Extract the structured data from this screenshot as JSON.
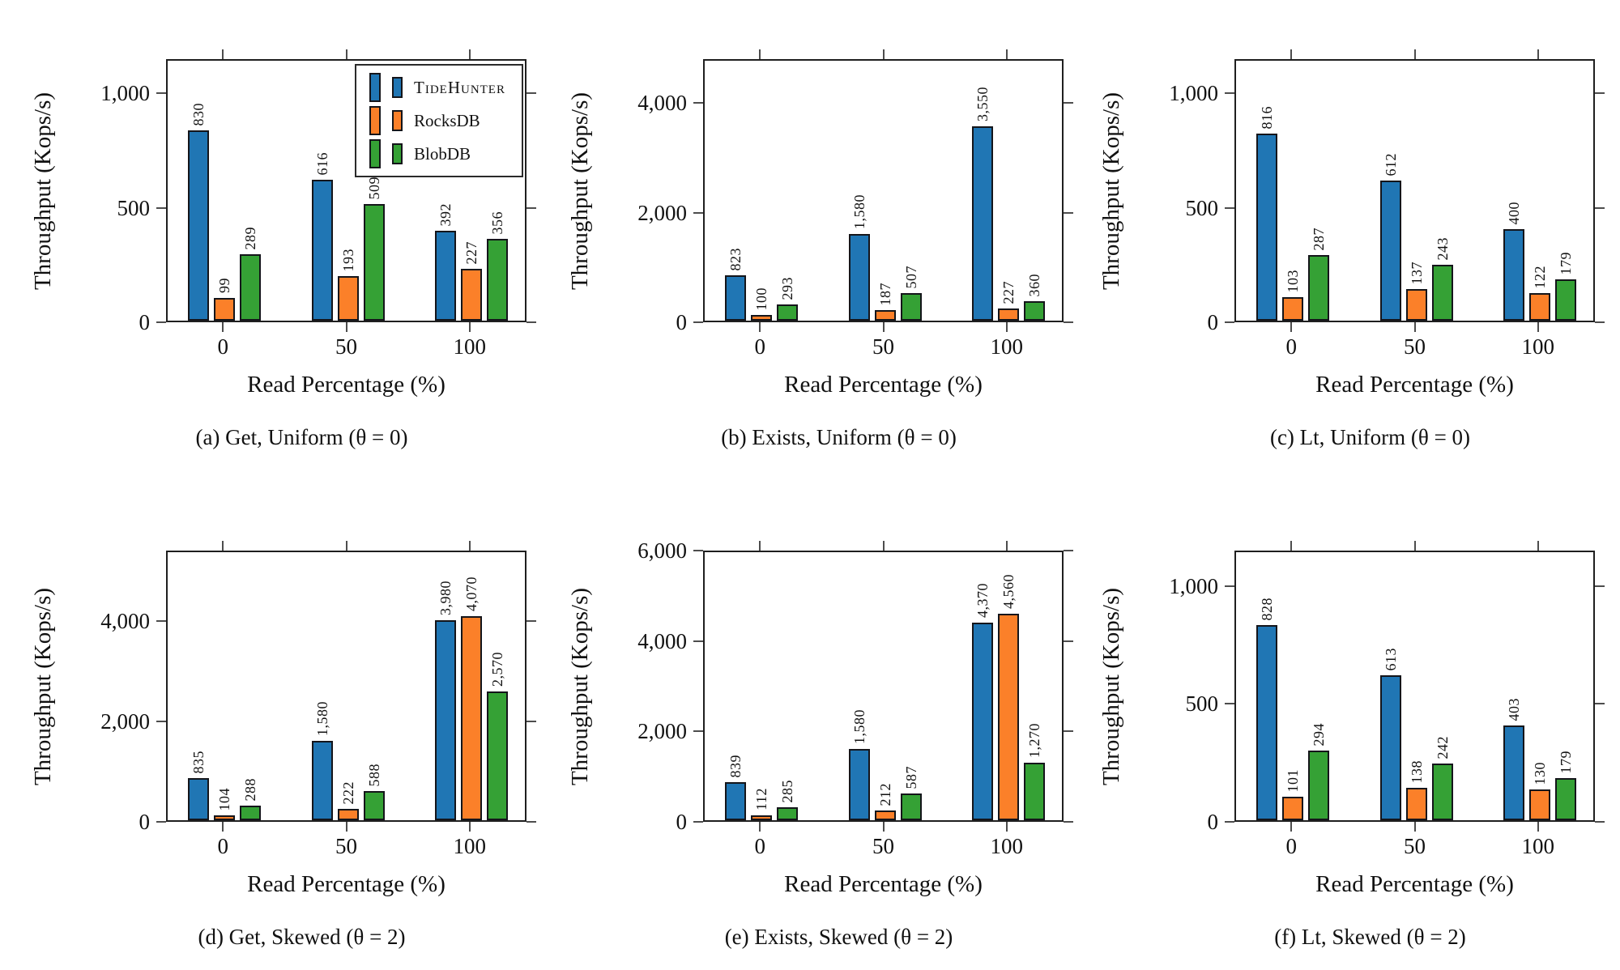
{
  "figure": {
    "background": "#ffffff",
    "series": [
      {
        "name": "TideHunter",
        "color": "#2076B4",
        "smallcaps": true
      },
      {
        "name": "RocksDB",
        "color": "#FB8029",
        "smallcaps": false
      },
      {
        "name": "BlobDB",
        "color": "#35A135",
        "smallcaps": false
      }
    ],
    "legend": {
      "chart": "a",
      "entries": [
        "TideHunter",
        "RocksDB",
        "BlobDB"
      ]
    }
  },
  "chart_data": [
    {
      "id": "a",
      "type": "bar",
      "caption": "(a) Get, Uniform (θ = 0)",
      "xlabel": "Read Percentage (%)",
      "ylabel": "Throughput (Kops/s)",
      "categories": [
        "0",
        "50",
        "100"
      ],
      "series": [
        {
          "name": "TideHunter",
          "values": [
            830,
            616,
            392
          ]
        },
        {
          "name": "RocksDB",
          "values": [
            99,
            193,
            227
          ]
        },
        {
          "name": "BlobDB",
          "values": [
            289,
            509,
            356
          ]
        }
      ],
      "yticks": [
        0,
        500,
        1000
      ],
      "ylim": [
        0,
        1150
      ],
      "legend": true
    },
    {
      "id": "b",
      "type": "bar",
      "caption": "(b) Exists, Uniform (θ = 0)",
      "xlabel": "Read Percentage (%)",
      "ylabel": "Throughput (Kops/s)",
      "categories": [
        "0",
        "50",
        "100"
      ],
      "series": [
        {
          "name": "TideHunter",
          "values": [
            823,
            1580,
            3550
          ]
        },
        {
          "name": "RocksDB",
          "values": [
            100,
            187,
            227
          ]
        },
        {
          "name": "BlobDB",
          "values": [
            293,
            507,
            360
          ]
        }
      ],
      "yticks": [
        0,
        2000,
        4000
      ],
      "ylim": [
        0,
        4800
      ],
      "legend": false
    },
    {
      "id": "c",
      "type": "bar",
      "caption": "(c) Lt, Uniform (θ = 0)",
      "xlabel": "Read Percentage (%)",
      "ylabel": "Throughput (Kops/s)",
      "categories": [
        "0",
        "50",
        "100"
      ],
      "series": [
        {
          "name": "TideHunter",
          "values": [
            816,
            612,
            400
          ]
        },
        {
          "name": "RocksDB",
          "values": [
            103,
            137,
            122
          ]
        },
        {
          "name": "BlobDB",
          "values": [
            287,
            243,
            179
          ]
        }
      ],
      "yticks": [
        0,
        500,
        1000
      ],
      "ylim": [
        0,
        1150
      ],
      "legend": false
    },
    {
      "id": "d",
      "type": "bar",
      "caption": "(d) Get, Skewed (θ = 2)",
      "xlabel": "Read Percentage (%)",
      "ylabel": "Throughput (Kops/s)",
      "categories": [
        "0",
        "50",
        "100"
      ],
      "series": [
        {
          "name": "TideHunter",
          "values": [
            835,
            1580,
            3980
          ]
        },
        {
          "name": "RocksDB",
          "values": [
            104,
            222,
            4070
          ]
        },
        {
          "name": "BlobDB",
          "values": [
            288,
            588,
            2570
          ]
        }
      ],
      "yticks": [
        0,
        2000,
        4000
      ],
      "ylim": [
        0,
        5400
      ],
      "legend": false
    },
    {
      "id": "e",
      "type": "bar",
      "caption": "(e) Exists, Skewed (θ = 2)",
      "xlabel": "Read Percentage (%)",
      "ylabel": "Throughput (Kops/s)",
      "categories": [
        "0",
        "50",
        "100"
      ],
      "series": [
        {
          "name": "TideHunter",
          "values": [
            839,
            1580,
            4370
          ]
        },
        {
          "name": "RocksDB",
          "values": [
            112,
            212,
            4560
          ]
        },
        {
          "name": "BlobDB",
          "values": [
            285,
            587,
            1270
          ]
        }
      ],
      "yticks": [
        0,
        2000,
        4000,
        6000
      ],
      "ylim": [
        0,
        6000
      ],
      "legend": false
    },
    {
      "id": "f",
      "type": "bar",
      "caption": "(f) Lt, Skewed (θ = 2)",
      "xlabel": "Read Percentage (%)",
      "ylabel": "Throughput (Kops/s)",
      "categories": [
        "0",
        "50",
        "100"
      ],
      "series": [
        {
          "name": "TideHunter",
          "values": [
            828,
            613,
            403
          ]
        },
        {
          "name": "RocksDB",
          "values": [
            101,
            138,
            130
          ]
        },
        {
          "name": "BlobDB",
          "values": [
            294,
            242,
            179
          ]
        }
      ],
      "yticks": [
        0,
        500,
        1000
      ],
      "ylim": [
        0,
        1150
      ],
      "legend": false
    }
  ]
}
